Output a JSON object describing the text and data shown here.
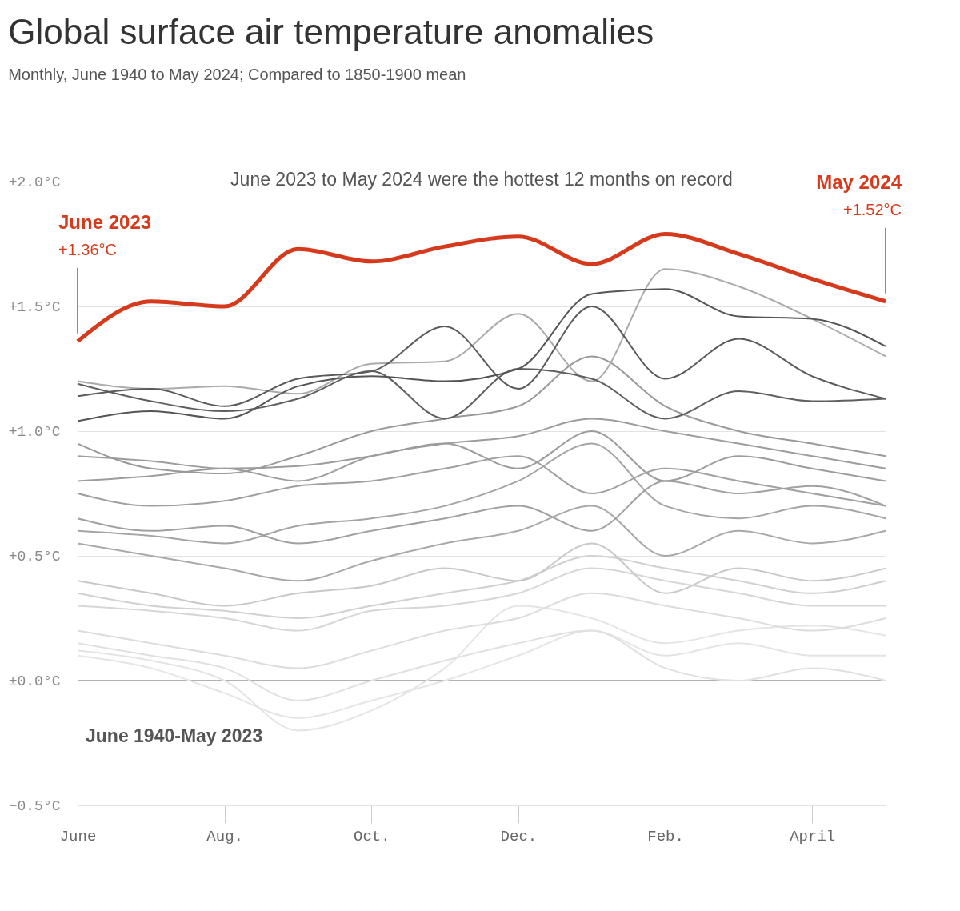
{
  "chart_data": {
    "type": "line",
    "title": "Global surface air temperature anomalies",
    "subtitle": "Monthly, June 1940 to May 2024; Compared to 1850-1900 mean",
    "categories": [
      "June",
      null,
      "Aug.",
      null,
      "Oct.",
      null,
      "Dec.",
      null,
      "Feb.",
      null,
      "April",
      null
    ],
    "ylim": [
      -0.5,
      2.0
    ],
    "yticks": [
      {
        "value": -0.5,
        "label": "−0.5°C"
      },
      {
        "value": 0,
        "label": "±0.0°C"
      },
      {
        "value": 0.5,
        "label": "+0.5°C"
      },
      {
        "value": 1.0,
        "label": "+1.0°C"
      },
      {
        "value": 1.5,
        "label": "+1.5°C"
      },
      {
        "value": 2.0,
        "label": "+2.0°C"
      }
    ],
    "grid": "y",
    "legend": false,
    "line_style": "solid",
    "ref_lines": [
      {
        "axis": "y",
        "value": 0,
        "label": null,
        "color": "#999999"
      }
    ],
    "series": [
      {
        "color": "#e4e4e4",
        "values": [
          0.12,
          0.08,
          0.0,
          -0.2,
          -0.12,
          0.05,
          0.3,
          0.25,
          0.15,
          0.2,
          0.22,
          0.18
        ]
      },
      {
        "color": "#e4e4e4",
        "values": [
          0.1,
          0.05,
          -0.05,
          -0.15,
          -0.08,
          0.0,
          0.1,
          0.2,
          0.1,
          0.15,
          0.1,
          0.1
        ]
      },
      {
        "color": "#e0e0e0",
        "values": [
          0.15,
          0.1,
          0.05,
          -0.08,
          0.0,
          0.08,
          0.15,
          0.2,
          0.05,
          0.0,
          0.05,
          0.0
        ]
      },
      {
        "color": "#dcdcdc",
        "values": [
          0.2,
          0.15,
          0.1,
          0.05,
          0.12,
          0.2,
          0.25,
          0.35,
          0.3,
          0.25,
          0.2,
          0.25
        ]
      },
      {
        "color": "#d6d6d6",
        "values": [
          0.3,
          0.28,
          0.25,
          0.2,
          0.28,
          0.3,
          0.35,
          0.45,
          0.4,
          0.35,
          0.3,
          0.3
        ]
      },
      {
        "color": "#d0d0d0",
        "values": [
          0.35,
          0.3,
          0.28,
          0.25,
          0.3,
          0.35,
          0.4,
          0.5,
          0.45,
          0.4,
          0.35,
          0.4
        ]
      },
      {
        "color": "#c8c8c8",
        "values": [
          0.4,
          0.35,
          0.3,
          0.35,
          0.38,
          0.45,
          0.4,
          0.55,
          0.35,
          0.45,
          0.4,
          0.45
        ]
      },
      {
        "color": "#a8a8a8",
        "values": [
          0.55,
          0.5,
          0.45,
          0.4,
          0.48,
          0.55,
          0.6,
          0.7,
          0.5,
          0.6,
          0.55,
          0.6
        ]
      },
      {
        "color": "#a4a4a4",
        "values": [
          0.6,
          0.58,
          0.55,
          0.62,
          0.65,
          0.7,
          0.8,
          0.95,
          0.7,
          0.65,
          0.7,
          0.65
        ]
      },
      {
        "color": "#a0a0a0",
        "values": [
          0.65,
          0.6,
          0.62,
          0.55,
          0.6,
          0.65,
          0.7,
          0.6,
          0.8,
          0.75,
          0.78,
          0.7
        ]
      },
      {
        "color": "#a0a0a0",
        "values": [
          0.75,
          0.7,
          0.72,
          0.78,
          0.8,
          0.85,
          0.9,
          0.75,
          0.85,
          0.8,
          0.75,
          0.7
        ]
      },
      {
        "color": "#9c9c9c",
        "values": [
          0.8,
          0.82,
          0.85,
          0.8,
          0.9,
          0.95,
          0.98,
          1.05,
          1.0,
          0.95,
          0.9,
          0.85
        ]
      },
      {
        "color": "#9c9c9c",
        "values": [
          0.9,
          0.88,
          0.85,
          0.86,
          0.9,
          0.95,
          0.85,
          1.0,
          0.8,
          0.9,
          0.85,
          0.8
        ]
      },
      {
        "color": "#999999",
        "values": [
          0.95,
          0.85,
          0.83,
          0.9,
          1.0,
          1.05,
          1.1,
          1.3,
          1.1,
          1.0,
          0.95,
          0.9
        ]
      },
      {
        "color": "#aaaaaa",
        "values": [
          1.2,
          1.17,
          1.18,
          1.15,
          1.27,
          1.28,
          1.47,
          1.2,
          1.65,
          1.58,
          1.45,
          1.3
        ]
      },
      {
        "color": "#5e5e5e",
        "values": [
          1.19,
          1.12,
          1.08,
          1.13,
          1.24,
          1.05,
          1.25,
          1.21,
          1.05,
          1.16,
          1.12,
          1.13
        ]
      },
      {
        "color": "#5a5a5a",
        "values": [
          1.14,
          1.17,
          1.1,
          1.21,
          1.24,
          1.42,
          1.17,
          1.5,
          1.21,
          1.37,
          1.22,
          1.13
        ]
      },
      {
        "color": "#555555",
        "values": [
          1.04,
          1.08,
          1.05,
          1.18,
          1.22,
          1.2,
          1.25,
          1.55,
          1.57,
          1.46,
          1.45,
          1.34
        ]
      },
      {
        "color": "#d63a1c",
        "values": [
          1.36,
          1.52,
          1.5,
          1.73,
          1.68,
          1.74,
          1.78,
          1.67,
          1.79,
          1.71,
          1.61,
          1.52
        ]
      }
    ],
    "annotations": [
      "June 2023 to May 2024 were the hottest 12 months on record",
      "June 1940-May 2023",
      "June 2023",
      "+1.36°C",
      "May 2024",
      "+1.52°C"
    ]
  }
}
